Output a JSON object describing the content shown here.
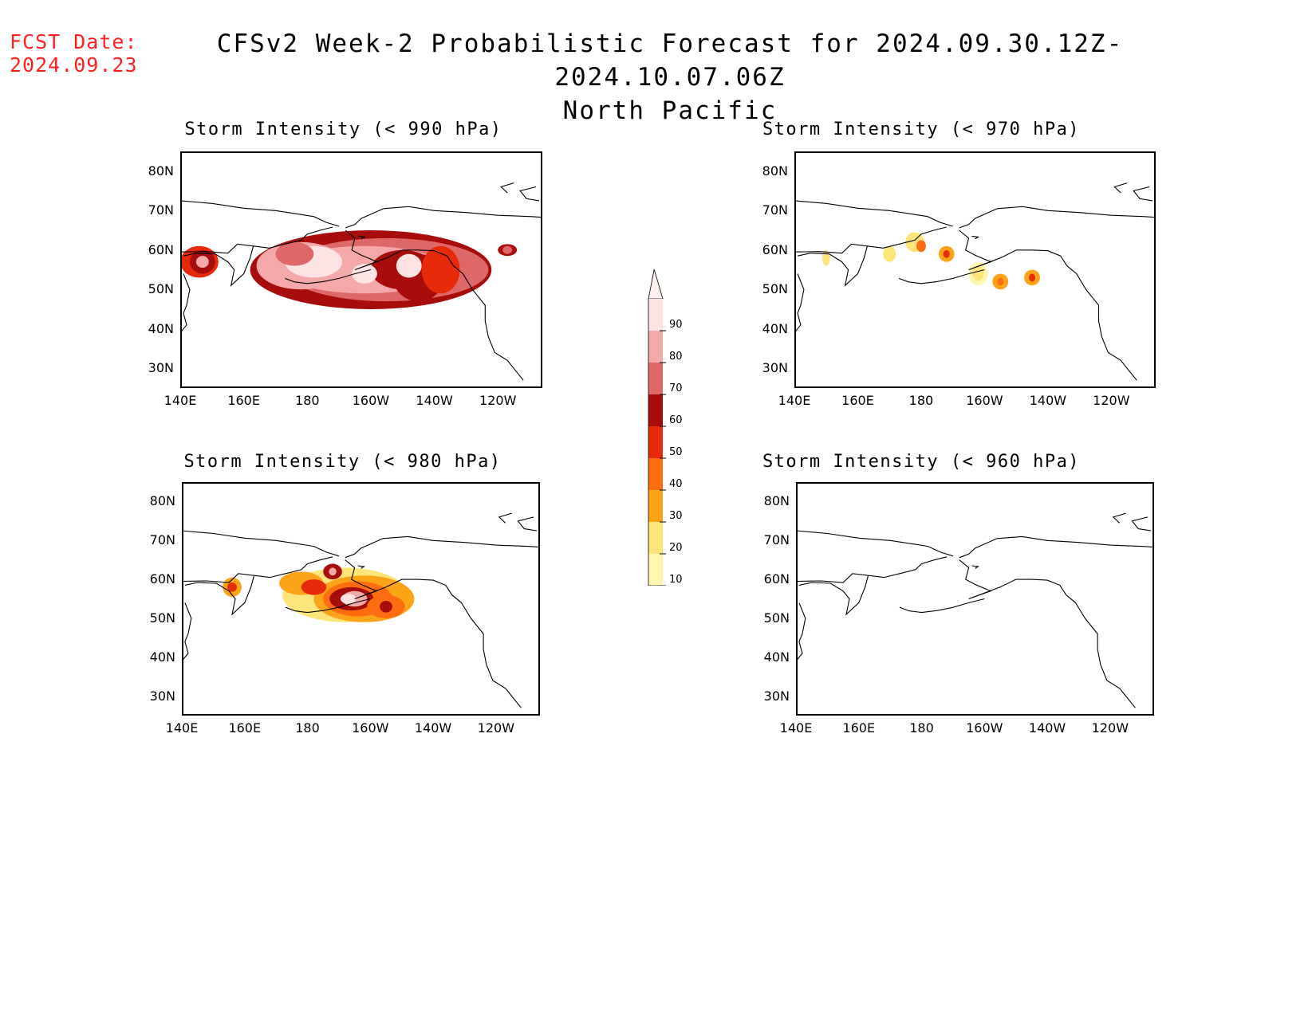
{
  "fcst_label": "FCST Date:",
  "fcst_date": "2024.09.23",
  "title_line1": "CFSv2 Week-2 Probabilistic Forecast for 2024.09.30.12Z-2024.10.07.06Z",
  "title_line2": "North Pacific",
  "panels": [
    {
      "title": "Storm Intensity (< 990 hPa)"
    },
    {
      "title": "Storm Intensity (< 970 hPa)"
    },
    {
      "title": "Storm Intensity (< 980 hPa)"
    },
    {
      "title": "Storm Intensity (< 960 hPa)"
    }
  ],
  "lat_ticks": [
    "80N",
    "70N",
    "60N",
    "50N",
    "40N",
    "30N"
  ],
  "lon_ticks": [
    "140E",
    "160E",
    "180",
    "160W",
    "140W",
    "120W"
  ],
  "colorbar": {
    "levels": [
      "10",
      "20",
      "30",
      "40",
      "50",
      "60",
      "70",
      "80",
      "90"
    ],
    "colors": [
      "#fff7b0",
      "#fde57a",
      "#fca318",
      "#ff6d10",
      "#e62a0a",
      "#a70d0a",
      "#de6868",
      "#f5a8a8",
      "#fde3e3"
    ]
  },
  "chart_data": {
    "type": "map",
    "region": "North Pacific",
    "lon_range": [
      140,
      250
    ],
    "lat_range": [
      25,
      85
    ],
    "panels": [
      {
        "threshold_hPa": 990,
        "coverage": "broad high probability 45N-65N from 140E to 130W; maxima near Gulf of Alaska and Bering Sea"
      },
      {
        "threshold_hPa": 970,
        "coverage": "scattered low probability spots near 55N-62N from 150E to 140W"
      },
      {
        "threshold_hPa": 980,
        "coverage": "moderate to high probability 45N-65N from 165E to 145W; maximum south of Alaska Peninsula"
      },
      {
        "threshold_hPa": 960,
        "coverage": "none"
      }
    ]
  }
}
